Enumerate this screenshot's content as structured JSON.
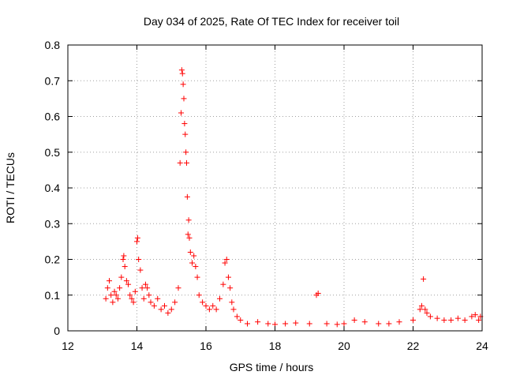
{
  "chart_data": {
    "type": "scatter",
    "title": "Day 034 of 2025, Rate Of TEC Index for receiver toil",
    "xlabel": "GPS time / hours",
    "ylabel": "ROTI / TECUs",
    "xlim": [
      12,
      24
    ],
    "ylim": [
      0,
      0.8
    ],
    "xticks": [
      "12",
      "14",
      "16",
      "18",
      "20",
      "22",
      "24"
    ],
    "yticks": [
      "0",
      "0.1",
      "0.2",
      "0.3",
      "0.4",
      "0.5",
      "0.6",
      "0.7",
      "0.8"
    ],
    "xtick_values": [
      12,
      14,
      16,
      18,
      20,
      22,
      24
    ],
    "ytick_values": [
      0,
      0.1,
      0.2,
      0.3,
      0.4,
      0.5,
      0.6,
      0.7,
      0.8
    ],
    "grid": true,
    "marker": "+",
    "color": "#ff0000",
    "series": [
      {
        "name": "ROTI",
        "x": [
          13.1,
          13.15,
          13.2,
          13.25,
          13.3,
          13.35,
          13.4,
          13.45,
          13.5,
          13.55,
          13.6,
          13.62,
          13.65,
          13.7,
          13.75,
          13.8,
          13.85,
          13.9,
          13.95,
          14.0,
          14.02,
          14.05,
          14.1,
          14.15,
          14.2,
          14.25,
          14.3,
          14.35,
          14.4,
          14.5,
          14.6,
          14.7,
          14.8,
          14.9,
          15.0,
          15.1,
          15.2,
          15.25,
          15.28,
          15.3,
          15.32,
          15.34,
          15.36,
          15.38,
          15.4,
          15.42,
          15.44,
          15.46,
          15.48,
          15.5,
          15.52,
          15.55,
          15.6,
          15.65,
          15.7,
          15.75,
          15.8,
          15.9,
          16.0,
          16.1,
          16.2,
          16.3,
          16.4,
          16.5,
          16.55,
          16.6,
          16.65,
          16.7,
          16.75,
          16.8,
          16.9,
          17.0,
          17.2,
          17.5,
          17.8,
          18.0,
          18.3,
          18.6,
          19.0,
          19.2,
          19.25,
          19.5,
          19.8,
          20.0,
          20.3,
          20.6,
          21.0,
          21.3,
          21.6,
          22.0,
          22.2,
          22.25,
          22.3,
          22.35,
          22.4,
          22.5,
          22.7,
          22.9,
          23.1,
          23.3,
          23.5,
          23.7,
          23.8,
          23.9,
          23.95
        ],
        "y": [
          0.09,
          0.12,
          0.14,
          0.1,
          0.08,
          0.11,
          0.1,
          0.09,
          0.12,
          0.15,
          0.2,
          0.21,
          0.18,
          0.14,
          0.13,
          0.1,
          0.09,
          0.08,
          0.11,
          0.25,
          0.26,
          0.2,
          0.17,
          0.12,
          0.09,
          0.13,
          0.12,
          0.1,
          0.08,
          0.07,
          0.09,
          0.06,
          0.07,
          0.05,
          0.06,
          0.08,
          0.12,
          0.47,
          0.61,
          0.73,
          0.72,
          0.69,
          0.65,
          0.58,
          0.55,
          0.5,
          0.47,
          0.375,
          0.27,
          0.31,
          0.26,
          0.22,
          0.19,
          0.21,
          0.18,
          0.15,
          0.1,
          0.08,
          0.07,
          0.06,
          0.07,
          0.06,
          0.09,
          0.13,
          0.19,
          0.2,
          0.15,
          0.12,
          0.08,
          0.06,
          0.04,
          0.03,
          0.02,
          0.025,
          0.02,
          0.018,
          0.02,
          0.022,
          0.02,
          0.1,
          0.105,
          0.02,
          0.018,
          0.02,
          0.03,
          0.025,
          0.02,
          0.02,
          0.025,
          0.03,
          0.06,
          0.07,
          0.145,
          0.06,
          0.05,
          0.04,
          0.035,
          0.03,
          0.03,
          0.035,
          0.03,
          0.04,
          0.045,
          0.03,
          0.04
        ]
      }
    ]
  }
}
